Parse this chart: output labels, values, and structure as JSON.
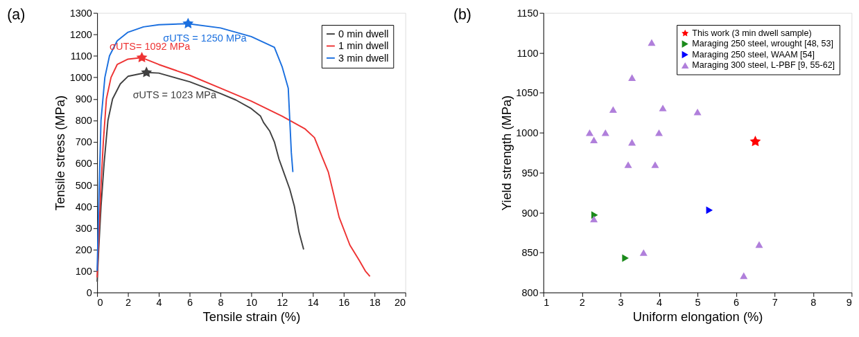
{
  "chart_data": [
    {
      "type": "line",
      "title": "(a)",
      "xlabel": "Tensile strain (%)",
      "ylabel": "Tensile stress (MPa)",
      "xlim": [
        0,
        20
      ],
      "xticks": [
        0,
        2,
        4,
        6,
        8,
        10,
        12,
        14,
        16,
        18,
        20
      ],
      "ylim": [
        0,
        1300
      ],
      "yticks": [
        0,
        100,
        200,
        300,
        400,
        500,
        600,
        700,
        800,
        900,
        1000,
        1100,
        1200,
        1300
      ],
      "grid": false,
      "legend": "top right",
      "line_style": "solid",
      "series": [
        {
          "name": "0 min dwell",
          "color": "#404040",
          "x": [
            0,
            0.1,
            0.25,
            0.45,
            0.7,
            1,
            1.5,
            2,
            3.2,
            4,
            6,
            8,
            9,
            10,
            10.6,
            10.8,
            11.2,
            11.5,
            11.8,
            12.1,
            12.5,
            12.8,
            13.1,
            13.4
          ],
          "values": [
            50,
            200,
            400,
            600,
            800,
            900,
            970,
            1005,
            1023,
            1020,
            980,
            925,
            895,
            855,
            820,
            790,
            750,
            700,
            620,
            560,
            480,
            400,
            280,
            200
          ]
        },
        {
          "name": "1 min dwell",
          "color": "#ee3333",
          "x": [
            0,
            0.1,
            0.25,
            0.4,
            0.6,
            0.9,
            1.3,
            2,
            2.9,
            4,
            6,
            8,
            10,
            12,
            13.5,
            14.1,
            14.6,
            15,
            15.3,
            15.7,
            16.4,
            17,
            17.4,
            17.7
          ],
          "values": [
            70,
            250,
            500,
            700,
            900,
            1000,
            1060,
            1085,
            1092,
            1060,
            1010,
            950,
            890,
            820,
            760,
            720,
            630,
            560,
            470,
            350,
            220,
            150,
            100,
            75
          ]
        },
        {
          "name": "3 min dwell",
          "color": "#1a6fdf",
          "x": [
            0,
            0.1,
            0.25,
            0.5,
            0.8,
            1.3,
            2,
            3,
            4,
            5.9,
            8,
            10,
            11.5,
            12,
            12.4,
            12.5,
            12.6,
            12.7
          ],
          "values": [
            100,
            400,
            800,
            1000,
            1100,
            1170,
            1210,
            1235,
            1245,
            1250,
            1230,
            1190,
            1140,
            1050,
            950,
            800,
            650,
            560
          ]
        },
        {
          "type": "scatter",
          "marker": "star",
          "color": "#404040",
          "x": [
            3.2
          ],
          "values": [
            1023
          ]
        },
        {
          "type": "scatter",
          "marker": "star",
          "color": "#ee3333",
          "x": [
            2.9
          ],
          "values": [
            1092
          ]
        },
        {
          "type": "scatter",
          "marker": "star",
          "color": "#1a6fdf",
          "x": [
            5.9
          ],
          "values": [
            1250
          ]
        }
      ],
      "annotations": [
        {
          "text": "σUTS = 1023 MPa",
          "x": 3.2,
          "y": 1023
        },
        {
          "text": "σUTS= 1092 MPa",
          "x": 2.9,
          "y": 1092
        },
        {
          "text": "σUTS = 1250 MPa",
          "x": 5.9,
          "y": 1250
        }
      ]
    },
    {
      "type": "scatter",
      "title": "(b)",
      "xlabel": "Uniform elongation (%)",
      "ylabel": "Yield strength (MPa)",
      "xlim": [
        1,
        9
      ],
      "xticks": [
        1,
        2,
        3,
        4,
        5,
        6,
        7,
        8,
        9
      ],
      "ylim": [
        800,
        1150
      ],
      "yticks": [
        800,
        850,
        900,
        950,
        1000,
        1050,
        1100,
        1150
      ],
      "grid": false,
      "legend": "top right",
      "series": [
        {
          "name": "This work (3 min dwell sample)",
          "color": "#ff0000",
          "marker": "star",
          "x": [
            6.5
          ],
          "values": [
            989
          ]
        },
        {
          "name": "Maraging 250 steel, wrought [48, 53]",
          "color": "#1a8a1a",
          "marker": "triangle-right",
          "x": [
            2.33,
            3.13
          ],
          "values": [
            897,
            843
          ]
        },
        {
          "name": "Maraging 250 steel, WAAM [54]",
          "color": "#0000ff",
          "marker": "triangle-right",
          "x": [
            5.31
          ],
          "values": [
            903
          ]
        },
        {
          "name": "Maraging 300 steel, L-PBF [9, 55-62]",
          "color": "#b07fdb",
          "marker": "triangle",
          "x": [
            3.81,
            3.3,
            2.81,
            4.1,
            5.0,
            2.2,
            2.61,
            2.31,
            3.3,
            4.0,
            3.2,
            3.9,
            2.31,
            3.6,
            6.6,
            6.2
          ],
          "values": [
            1113,
            1069,
            1029,
            1031,
            1026,
            1000,
            1000,
            991,
            988,
            1000,
            960,
            960,
            892,
            850,
            860,
            821
          ]
        }
      ]
    }
  ]
}
